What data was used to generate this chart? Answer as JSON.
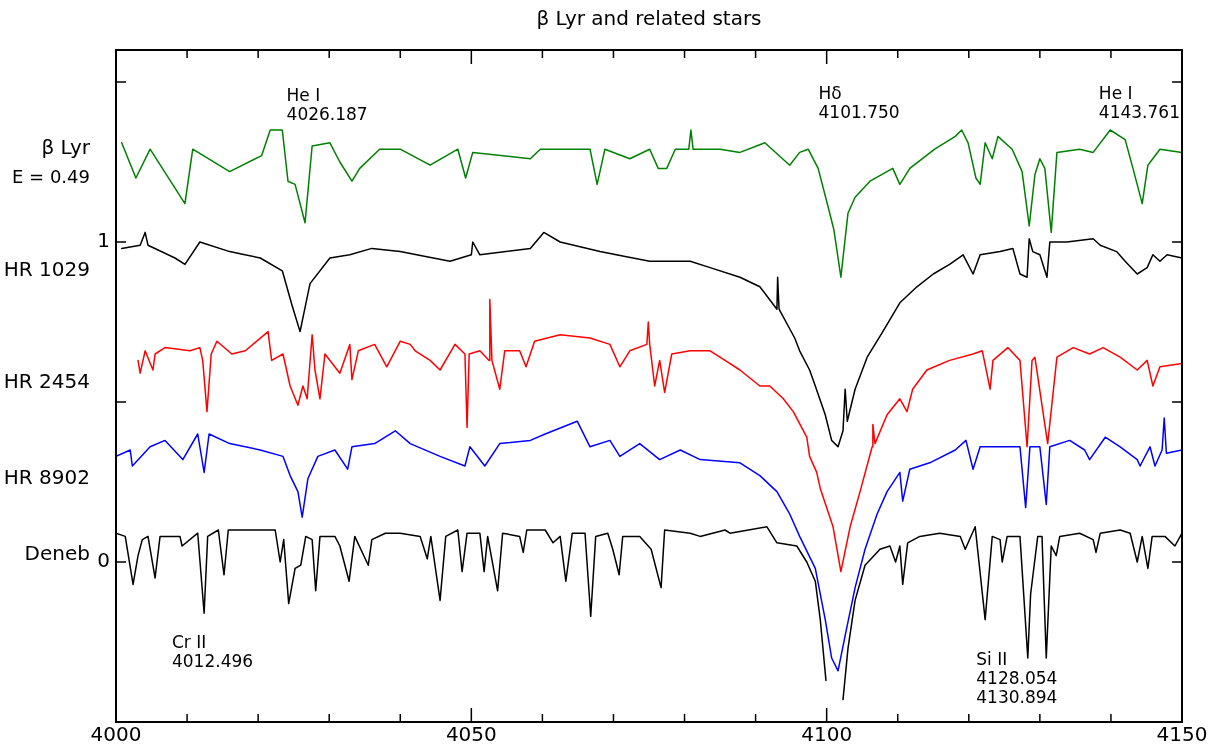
{
  "chart_data": {
    "type": "line",
    "title": "β Lyr and related stars",
    "xlim": [
      4000,
      4150
    ],
    "ylim": [
      -0.5,
      1.6
    ],
    "xticks": [
      4000,
      {
        "value": 4010,
        "label": null
      },
      {
        "value": 4020,
        "label": null
      },
      {
        "value": 4030,
        "label": null
      },
      {
        "value": 4040,
        "label": null
      },
      4050,
      {
        "value": 4060,
        "label": null
      },
      {
        "value": 4070,
        "label": null
      },
      {
        "value": 4080,
        "label": null
      },
      {
        "value": 4090,
        "label": null
      },
      4100,
      {
        "value": 4110,
        "label": null
      },
      {
        "value": 4120,
        "label": null
      },
      {
        "value": 4130,
        "label": null
      },
      {
        "value": 4140,
        "label": null
      },
      4150
    ],
    "yticks": [
      0,
      {
        "value": 0.5,
        "label": null
      },
      1,
      {
        "value": 1.5,
        "label": null
      }
    ],
    "grid": false,
    "legend": false,
    "annotations": [
      "E = 0.49",
      "He I\n4026.187",
      "Hδ\n4101.750",
      "He I\n4143.761",
      "Cr II\n4012.496",
      "Si II\n4128.054\n4130.894"
    ],
    "series": [
      {
        "name": "β Lyr",
        "color": "#008000",
        "x": [
          4000.8,
          4002.8,
          4004.8,
          4009.7,
          4010.8,
          4016.0,
          4020.5,
          4021.7,
          4023.4,
          4024.2,
          4025.2,
          4026.6,
          4027.6,
          4030.1,
          4031.5,
          4033.2,
          4034.3,
          4037.1,
          4040.0,
          4044.2,
          4048.1,
          4049.2,
          4050.2,
          4058.3,
          4059.7,
          4065.3,
          4066.7,
          4067.7,
          4068.8,
          4072.3,
          4075.1,
          4076.3,
          4077.5,
          4078.7,
          4080.6,
          4080.9,
          4081.2,
          4085.0,
          4087.8,
          4091.3,
          4094.8,
          4096.2,
          4097.4,
          4098.8,
          4100.2,
          4101.0,
          4102.0,
          4103.0,
          4104.0,
          4106.1,
          4109.3,
          4110.3,
          4111.7,
          4115.2,
          4118.1,
          4119.0,
          4119.9,
          4121.0,
          4121.6,
          4122.3,
          4123.3,
          4124.1,
          4126.1,
          4127.5,
          4128.5,
          4129.3,
          4130.0,
          4130.7,
          4131.6,
          4132.4,
          4135.6,
          4137.5,
          4139.9,
          4142.0,
          4143.1,
          4144.4,
          4145.2,
          4146.9,
          4150.0
        ],
        "values": [
          1.31,
          1.2,
          1.29,
          1.12,
          1.29,
          1.22,
          1.27,
          1.35,
          1.35,
          1.19,
          1.18,
          1.06,
          1.3,
          1.31,
          1.25,
          1.19,
          1.23,
          1.29,
          1.29,
          1.24,
          1.29,
          1.2,
          1.28,
          1.26,
          1.29,
          1.29,
          1.29,
          1.18,
          1.29,
          1.26,
          1.29,
          1.23,
          1.23,
          1.29,
          1.29,
          1.35,
          1.29,
          1.29,
          1.28,
          1.31,
          1.24,
          1.28,
          1.29,
          1.23,
          1.11,
          1.04,
          0.89,
          1.09,
          1.14,
          1.19,
          1.23,
          1.18,
          1.23,
          1.29,
          1.33,
          1.35,
          1.31,
          1.2,
          1.18,
          1.31,
          1.26,
          1.33,
          1.29,
          1.22,
          1.05,
          1.21,
          1.26,
          1.23,
          1.03,
          1.28,
          1.29,
          1.28,
          1.35,
          1.32,
          1.23,
          1.12,
          1.24,
          1.29,
          1.28
        ]
      },
      {
        "name": "HR 1029",
        "color": "#000000",
        "x": [
          4000.8,
          4003.4,
          4004.1,
          4004.5,
          4008.3,
          4009.7,
          4011.8,
          4016.0,
          4020.3,
          4023.4,
          4024.8,
          4025.9,
          4027.3,
          4030.1,
          4032.9,
          4036.0,
          4040.0,
          4047.0,
          4050.0,
          4050.2,
          4051.2,
          4058.3,
          4060.2,
          4062.5,
          4068.1,
          4075.1,
          4080.8,
          4083.6,
          4087.8,
          4090.6,
          4093.0,
          4093.1,
          4093.3,
          4095.5,
          4096.2,
          4097.6,
          4098.4,
          4099.8,
          4100.7,
          4101.6,
          4102.3,
          4102.6,
          4102.9,
          4104.0,
          4105.7,
          4107.9,
          4110.3,
          4112.7,
          4115.0,
          4117.3,
          4119.2,
          4120.6,
          4121.6,
          4124.4,
          4126.2,
          4127.2,
          4128.2,
          4128.5,
          4129.0,
          4130.0,
          4131.0,
          4131.4,
          4133.8,
          4137.5,
          4138.5,
          4140.8,
          4142.0,
          4143.7,
          4145.1,
          4145.9,
          4146.9,
          4147.9,
          4150.0
        ],
        "values": [
          0.98,
          0.99,
          1.03,
          0.99,
          0.95,
          0.93,
          1.0,
          0.97,
          0.95,
          0.91,
          0.8,
          0.72,
          0.87,
          0.95,
          0.96,
          0.98,
          0.97,
          0.94,
          0.96,
          1.0,
          0.96,
          0.98,
          1.03,
          1.0,
          0.97,
          0.94,
          0.94,
          0.92,
          0.89,
          0.86,
          0.79,
          0.89,
          0.79,
          0.7,
          0.66,
          0.6,
          0.55,
          0.46,
          0.38,
          0.36,
          0.41,
          0.54,
          0.44,
          0.54,
          0.64,
          0.72,
          0.81,
          0.86,
          0.9,
          0.93,
          0.96,
          0.9,
          0.96,
          0.97,
          0.98,
          0.9,
          0.89,
          1.01,
          0.97,
          0.96,
          0.89,
          1.0,
          1.0,
          1.01,
          0.99,
          0.97,
          0.94,
          0.9,
          0.92,
          0.96,
          0.94,
          0.96,
          0.95
        ]
      },
      {
        "name": "HR 2454",
        "color": "#ff0000",
        "x": [
          4003.1,
          4003.4,
          4004.1,
          4005.2,
          4005.5,
          4006.9,
          4010.4,
          4011.8,
          4012.2,
          4012.8,
          4013.4,
          4014.2,
          4016.3,
          4018.2,
          4021.4,
          4021.9,
          4023.5,
          4024.5,
          4025.6,
          4026.3,
          4026.9,
          4027.6,
          4028.0,
          4028.7,
          4029.4,
          4031.5,
          4032.9,
          4033.2,
          4034.1,
          4036.4,
          4038.1,
          4040.0,
          4041.4,
          4042.1,
          4044.2,
          4045.6,
          4047.7,
          4049.1,
          4049.4,
          4049.7,
          4051.2,
          4052.5,
          4052.6,
          4052.9,
          4054.0,
          4054.7,
          4056.8,
          4057.7,
          4058.9,
          4062.5,
          4066.7,
          4069.5,
          4070.9,
          4072.3,
          4074.7,
          4074.9,
          4075.1,
          4075.8,
          4076.5,
          4077.2,
          4078.2,
          4080.8,
          4083.6,
          4085.7,
          4087.8,
          4090.6,
          4092.0,
          4093.9,
          4095.3,
          4097.2,
          4097.6,
          4098.6,
          4099.1,
          4100.9,
          4102.0,
          4103.3,
          4104.7,
          4106.4,
          4106.5,
          4106.8,
          4108.5,
          4110.3,
          4111.3,
          4112.1,
          4114.1,
          4117.3,
          4120.6,
          4121.9,
          4123.0,
          4123.4,
          4125.5,
          4127.2,
          4128.2,
          4128.9,
          4129.3,
          4131.1,
          4132.4,
          4134.7,
          4137.0,
          4138.9,
          4141.3,
          4143.7,
          4145.1,
          4145.9,
          4146.9,
          4150.0
        ],
        "values": [
          0.63,
          0.59,
          0.66,
          0.6,
          0.65,
          0.67,
          0.66,
          0.67,
          0.63,
          0.47,
          0.65,
          0.69,
          0.65,
          0.66,
          0.72,
          0.63,
          0.65,
          0.55,
          0.49,
          0.55,
          0.51,
          0.71,
          0.6,
          0.51,
          0.65,
          0.59,
          0.68,
          0.57,
          0.66,
          0.68,
          0.61,
          0.69,
          0.68,
          0.66,
          0.63,
          0.6,
          0.68,
          0.65,
          0.42,
          0.65,
          0.66,
          0.63,
          0.82,
          0.63,
          0.54,
          0.66,
          0.66,
          0.61,
          0.69,
          0.71,
          0.7,
          0.68,
          0.61,
          0.66,
          0.68,
          0.75,
          0.68,
          0.55,
          0.63,
          0.53,
          0.65,
          0.66,
          0.66,
          0.63,
          0.6,
          0.55,
          0.55,
          0.51,
          0.47,
          0.39,
          0.33,
          0.28,
          0.23,
          0.11,
          -0.03,
          0.11,
          0.22,
          0.36,
          0.43,
          0.37,
          0.46,
          0.51,
          0.47,
          0.54,
          0.6,
          0.63,
          0.65,
          0.66,
          0.54,
          0.63,
          0.67,
          0.63,
          0.36,
          0.63,
          0.64,
          0.37,
          0.64,
          0.67,
          0.65,
          0.67,
          0.64,
          0.6,
          0.63,
          0.55,
          0.61,
          0.62
        ]
      },
      {
        "name": "HR 8902",
        "color": "#0000ff",
        "x": [
          4000.0,
          4002.0,
          4002.3,
          4004.8,
          4006.9,
          4009.4,
          4011.5,
          4012.4,
          4013.1,
          4016.0,
          4020.3,
          4023.5,
          4024.5,
          4025.6,
          4026.2,
          4027.0,
          4028.4,
          4030.8,
          4032.6,
          4033.2,
          4036.4,
          4039.3,
          4041.4,
          4045.6,
          4049.1,
          4049.8,
          4051.9,
          4054.0,
          4058.3,
          4060.4,
          4064.9,
          4066.7,
          4069.5,
          4070.9,
          4073.7,
          4076.5,
          4079.4,
          4082.2,
          4087.8,
          4090.6,
          4093.0,
          4094.8,
          4096.2,
          4098.4,
          4099.8,
          4100.7,
          4101.6,
          4102.6,
          4104.0,
          4105.4,
          4107.1,
          4108.5,
          4110.3,
          4110.7,
          4111.7,
          4114.5,
          4118.1,
          4119.6,
          4120.6,
          4121.6,
          4124.4,
          4127.2,
          4128.0,
          4128.6,
          4130.0,
          4130.9,
          4131.4,
          4134.2,
          4136.3,
          4137.0,
          4139.2,
          4141.3,
          4143.7,
          4144.1,
          4145.5,
          4146.2,
          4147.2,
          4147.5,
          4147.8,
          4150.0
        ],
        "values": [
          0.33,
          0.35,
          0.3,
          0.36,
          0.38,
          0.32,
          0.4,
          0.28,
          0.4,
          0.37,
          0.35,
          0.33,
          0.27,
          0.22,
          0.14,
          0.26,
          0.33,
          0.35,
          0.29,
          0.36,
          0.37,
          0.41,
          0.37,
          0.33,
          0.3,
          0.36,
          0.3,
          0.37,
          0.38,
          0.4,
          0.44,
          0.36,
          0.38,
          0.33,
          0.37,
          0.32,
          0.35,
          0.32,
          0.31,
          0.27,
          0.22,
          0.15,
          0.08,
          -0.02,
          -0.18,
          -0.3,
          -0.34,
          -0.23,
          -0.08,
          0.04,
          0.15,
          0.22,
          0.28,
          0.19,
          0.29,
          0.31,
          0.35,
          0.38,
          0.29,
          0.36,
          0.36,
          0.36,
          0.17,
          0.36,
          0.36,
          0.18,
          0.36,
          0.38,
          0.35,
          0.32,
          0.39,
          0.36,
          0.32,
          0.3,
          0.36,
          0.3,
          0.35,
          0.45,
          0.34,
          0.35
        ]
      },
      {
        "name": "Deneb",
        "color": "#000000",
        "x": [
          4000.0,
          4001.3,
          4002.4,
          4003.1,
          4003.7,
          4004.5,
          4005.5,
          4006.2,
          4009.0,
          4009.3,
          4011.5,
          4012.4,
          4012.9,
          4014.4,
          4015.2,
          4015.8,
          4018.9,
          4022.4,
          4023.1,
          4023.6,
          4024.3,
          4025.2,
          4026.0,
          4026.7,
          4027.6,
          4028.1,
          4028.7,
          4030.8,
          4031.5,
          4032.8,
          4033.6,
          4035.5,
          4036.0,
          4037.9,
          4040.0,
          4042.8,
          4043.8,
          4044.3,
          4045.6,
          4046.4,
          4048.1,
          4048.7,
          4049.4,
          4051.2,
          4051.8,
          4052.3,
          4053.7,
          4054.4,
          4056.8,
          4057.3,
          4057.8,
          4060.4,
          4061.5,
          4062.5,
          4063.3,
          4064.2,
          4066.0,
          4066.8,
          4067.5,
          4069.2,
          4069.9,
          4070.8,
          4071.3,
          4073.7,
          4075.3,
          4076.7,
          4077.2,
          4080.8,
          4082.2,
          4085.7,
          4086.4,
          4091.6,
          4093.0,
          4095.8,
          4097.2,
          4098.4,
          4099.1,
          4099.9,
          4100.9,
          4101.9,
          4102.3,
          4103.0,
          4104.0,
          4105.4,
          4107.5,
          4108.9,
          4109.7,
          4110.3,
          4110.7,
          4111.4,
          4113.1,
          4115.9,
          4118.8,
          4119.5,
          4120.9,
          4122.3,
          4123.3,
          4124.4,
          4124.7,
          4125.4,
          4127.2,
          4128.3,
          4128.7,
          4129.7,
          4130.3,
          4130.9,
          4131.6,
          4132.3,
          4132.8,
          4135.6,
          4137.5,
          4137.9,
          4138.5,
          4141.3,
          4142.7,
          4143.7,
          4144.4,
          4145.2,
          4145.8,
          4147.6,
          4149.0,
          4150.0
        ],
        "values": [
          0.09,
          0.08,
          -0.07,
          0.02,
          0.07,
          0.08,
          -0.05,
          0.08,
          0.08,
          0.05,
          0.09,
          -0.16,
          0.08,
          0.1,
          -0.04,
          0.1,
          0.1,
          0.1,
          0.0,
          0.07,
          -0.13,
          -0.02,
          -0.01,
          0.08,
          0.07,
          -0.09,
          0.08,
          0.08,
          0.05,
          -0.06,
          0.08,
          -0.01,
          0.07,
          0.09,
          0.09,
          0.08,
          0.01,
          0.08,
          -0.12,
          0.08,
          0.1,
          -0.03,
          0.09,
          0.09,
          -0.03,
          0.08,
          -0.09,
          0.09,
          0.08,
          0.03,
          0.1,
          0.1,
          0.06,
          0.08,
          -0.06,
          0.09,
          0.09,
          -0.17,
          0.08,
          0.09,
          0.04,
          -0.04,
          0.08,
          0.08,
          0.04,
          -0.08,
          0.1,
          0.09,
          0.08,
          0.1,
          0.09,
          0.11,
          0.06,
          0.05,
          0.0,
          -0.06,
          -0.18,
          -0.37,
          null,
          null,
          -0.43,
          -0.27,
          -0.12,
          -0.01,
          0.04,
          0.05,
          0.0,
          0.05,
          -0.07,
          0.06,
          0.08,
          0.09,
          0.08,
          0.04,
          0.11,
          -0.18,
          0.08,
          0.07,
          0.0,
          0.08,
          0.08,
          -0.3,
          -0.1,
          0.08,
          0.08,
          -0.3,
          0.05,
          0.02,
          0.08,
          0.09,
          0.07,
          0.03,
          0.09,
          0.1,
          0.09,
          0.0,
          0.08,
          -0.02,
          0.08,
          0.08,
          0.05,
          0.09
        ]
      }
    ]
  }
}
